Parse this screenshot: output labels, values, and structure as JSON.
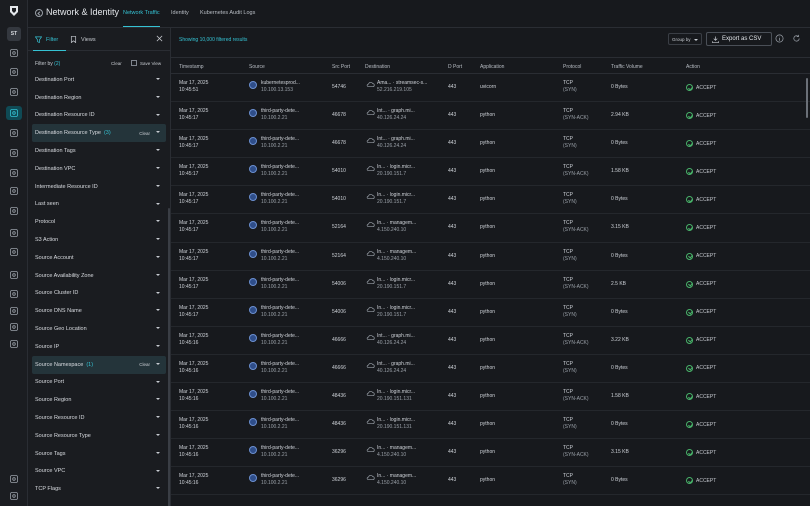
{
  "rail": {
    "avatar": "ST",
    "icons": [
      "dashboard-icon",
      "inventory-icon",
      "findings-icon",
      "network-icon",
      "tools-icon",
      "shield-icon",
      "alert-icon",
      "compliance-icon",
      "check-icon",
      "ai-icon",
      "integrations-icon",
      "settings-icon",
      "report-icon",
      "vulnerability-icon",
      "users-icon",
      "org-icon",
      "help-icon",
      "user-settings-icon"
    ]
  },
  "header": {
    "title": "Network & Identity",
    "tabs": [
      "Network Traffic",
      "Identity",
      "Kubernetes Audit Logs"
    ]
  },
  "filters": {
    "tab_filter": "Filter",
    "tab_views": "Views",
    "filter_by": "Filter by",
    "filter_count": "(2)",
    "clear_label": "Clear",
    "save_view": "Save View",
    "items": [
      {
        "label": "Destination Port",
        "badge": "",
        "clear": ""
      },
      {
        "label": "Destination Region",
        "badge": "",
        "clear": ""
      },
      {
        "label": "Destination Resource ID",
        "badge": "",
        "clear": ""
      },
      {
        "label": "Destination Resource Type",
        "badge": "(3)",
        "clear": "Clear"
      },
      {
        "label": "Destination Tags",
        "badge": "",
        "clear": ""
      },
      {
        "label": "Destination VPC",
        "badge": "",
        "clear": ""
      },
      {
        "label": "Intermediate Resource ID",
        "badge": "",
        "clear": ""
      },
      {
        "label": "Last seen",
        "badge": "",
        "clear": ""
      },
      {
        "label": "Protocol",
        "badge": "",
        "clear": ""
      },
      {
        "label": "S3 Action",
        "badge": "",
        "clear": ""
      },
      {
        "label": "Source Account",
        "badge": "",
        "clear": ""
      },
      {
        "label": "Source Availability Zone",
        "badge": "",
        "clear": ""
      },
      {
        "label": "Source Cluster ID",
        "badge": "",
        "clear": ""
      },
      {
        "label": "Source DNS Name",
        "badge": "",
        "clear": ""
      },
      {
        "label": "Source Geo Location",
        "badge": "",
        "clear": ""
      },
      {
        "label": "Source IP",
        "badge": "",
        "clear": ""
      },
      {
        "label": "Source Namespace",
        "badge": "(1)",
        "clear": "Clear"
      },
      {
        "label": "Source Port",
        "badge": "",
        "clear": ""
      },
      {
        "label": "Source Region",
        "badge": "",
        "clear": ""
      },
      {
        "label": "Source Resource ID",
        "badge": "",
        "clear": ""
      },
      {
        "label": "Source Resource Type",
        "badge": "",
        "clear": ""
      },
      {
        "label": "Source Tags",
        "badge": "",
        "clear": ""
      },
      {
        "label": "Source VPC",
        "badge": "",
        "clear": ""
      },
      {
        "label": "TCP Flags",
        "badge": "",
        "clear": ""
      }
    ]
  },
  "main": {
    "shown": "Showing 10,000 filtered results",
    "group_by": "Group by",
    "export": "Export as CSV",
    "columns": [
      "Timestamp",
      "Source",
      "Src Port",
      "Destination",
      "D Port",
      "Application",
      "Protocol",
      "Traffic Volume",
      "Action"
    ],
    "rows": [
      {
        "date": "Mar 17, 2025",
        "time": "10:45:51",
        "src": "kubernetesprod...",
        "src_ip": "10.100.13.153",
        "sport": "54746",
        "dst": "Ama... · streamsec-s...",
        "dst_ip": "52.216.219.105",
        "dport": "443",
        "app": "uvicorn",
        "proto": "TCP",
        "flags": "(SYN)",
        "vol": "0 Bytes",
        "action": "ACCEPT"
      },
      {
        "date": "Mar 17, 2025",
        "time": "10:45:17",
        "src": "third-party-dete...",
        "src_ip": "10.100.2.21",
        "sport": "46678",
        "dst": "Int... · graph.mi...",
        "dst_ip": "40.126.24.24",
        "dport": "443",
        "app": "python",
        "proto": "TCP",
        "flags": "(SYN-ACK)",
        "vol": "2.94 KB",
        "action": "ACCEPT"
      },
      {
        "date": "Mar 17, 2025",
        "time": "10:45:17",
        "src": "third-party-dete...",
        "src_ip": "10.100.2.21",
        "sport": "46678",
        "dst": "Int... · graph.mi...",
        "dst_ip": "40.126.24.24",
        "dport": "443",
        "app": "python",
        "proto": "TCP",
        "flags": "(SYN)",
        "vol": "0 Bytes",
        "action": "ACCEPT"
      },
      {
        "date": "Mar 17, 2025",
        "time": "10:45:17",
        "src": "third-party-dete...",
        "src_ip": "10.100.2.21",
        "sport": "54010",
        "dst": "In... · login.micr...",
        "dst_ip": "20.190.151.7",
        "dport": "443",
        "app": "python",
        "proto": "TCP",
        "flags": "(SYN-ACK)",
        "vol": "1.58 KB",
        "action": "ACCEPT"
      },
      {
        "date": "Mar 17, 2025",
        "time": "10:45:17",
        "src": "third-party-dete...",
        "src_ip": "10.100.2.21",
        "sport": "54010",
        "dst": "In... · login.micr...",
        "dst_ip": "20.190.151.7",
        "dport": "443",
        "app": "python",
        "proto": "TCP",
        "flags": "(SYN)",
        "vol": "0 Bytes",
        "action": "ACCEPT"
      },
      {
        "date": "Mar 17, 2025",
        "time": "10:45:17",
        "src": "third-party-dete...",
        "src_ip": "10.100.2.21",
        "sport": "52164",
        "dst": "In... · managem...",
        "dst_ip": "4.150.240.10",
        "dport": "443",
        "app": "python",
        "proto": "TCP",
        "flags": "(SYN-ACK)",
        "vol": "3.15 KB",
        "action": "ACCEPT"
      },
      {
        "date": "Mar 17, 2025",
        "time": "10:45:17",
        "src": "third-party-dete...",
        "src_ip": "10.100.2.21",
        "sport": "52164",
        "dst": "In... · managem...",
        "dst_ip": "4.150.240.10",
        "dport": "443",
        "app": "python",
        "proto": "TCP",
        "flags": "(SYN)",
        "vol": "0 Bytes",
        "action": "ACCEPT"
      },
      {
        "date": "Mar 17, 2025",
        "time": "10:45:17",
        "src": "third-party-dete...",
        "src_ip": "10.100.2.21",
        "sport": "54006",
        "dst": "In... · login.micr...",
        "dst_ip": "20.190.151.7",
        "dport": "443",
        "app": "python",
        "proto": "TCP",
        "flags": "(SYN-ACK)",
        "vol": "2.5 KB",
        "action": "ACCEPT"
      },
      {
        "date": "Mar 17, 2025",
        "time": "10:45:17",
        "src": "third-party-dete...",
        "src_ip": "10.100.2.21",
        "sport": "54006",
        "dst": "In... · login.micr...",
        "dst_ip": "20.190.151.7",
        "dport": "443",
        "app": "python",
        "proto": "TCP",
        "flags": "(SYN)",
        "vol": "0 Bytes",
        "action": "ACCEPT"
      },
      {
        "date": "Mar 17, 2025",
        "time": "10:45:16",
        "src": "third-party-dete...",
        "src_ip": "10.100.2.21",
        "sport": "46666",
        "dst": "Int... · graph.mi...",
        "dst_ip": "40.126.24.24",
        "dport": "443",
        "app": "python",
        "proto": "TCP",
        "flags": "(SYN-ACK)",
        "vol": "3.22 KB",
        "action": "ACCEPT"
      },
      {
        "date": "Mar 17, 2025",
        "time": "10:45:16",
        "src": "third-party-dete...",
        "src_ip": "10.100.2.21",
        "sport": "46666",
        "dst": "Int... · graph.mi...",
        "dst_ip": "40.126.24.24",
        "dport": "443",
        "app": "python",
        "proto": "TCP",
        "flags": "(SYN)",
        "vol": "0 Bytes",
        "action": "ACCEPT"
      },
      {
        "date": "Mar 17, 2025",
        "time": "10:45:16",
        "src": "third-party-dete...",
        "src_ip": "10.100.2.21",
        "sport": "48436",
        "dst": "In... · login.micr...",
        "dst_ip": "20.190.151.131",
        "dport": "443",
        "app": "python",
        "proto": "TCP",
        "flags": "(SYN-ACK)",
        "vol": "1.58 KB",
        "action": "ACCEPT"
      },
      {
        "date": "Mar 17, 2025",
        "time": "10:45:16",
        "src": "third-party-dete...",
        "src_ip": "10.100.2.21",
        "sport": "48436",
        "dst": "In... · login.micr...",
        "dst_ip": "20.190.151.131",
        "dport": "443",
        "app": "python",
        "proto": "TCP",
        "flags": "(SYN)",
        "vol": "0 Bytes",
        "action": "ACCEPT"
      },
      {
        "date": "Mar 17, 2025",
        "time": "10:45:16",
        "src": "third-party-dete...",
        "src_ip": "10.100.2.21",
        "sport": "36296",
        "dst": "In... · managem...",
        "dst_ip": "4.150.240.10",
        "dport": "443",
        "app": "python",
        "proto": "TCP",
        "flags": "(SYN-ACK)",
        "vol": "3.15 KB",
        "action": "ACCEPT"
      },
      {
        "date": "Mar 17, 2025",
        "time": "10:45:16",
        "src": "third-party-dete...",
        "src_ip": "10.100.2.21",
        "sport": "36296",
        "dst": "In... · managem...",
        "dst_ip": "4.150.240.10",
        "dport": "443",
        "app": "python",
        "proto": "TCP",
        "flags": "(SYN)",
        "vol": "0 Bytes",
        "action": "ACCEPT"
      }
    ]
  },
  "colors": {
    "accent": "#35c2d3",
    "accept": "#49b36a",
    "background": "#17191d"
  }
}
